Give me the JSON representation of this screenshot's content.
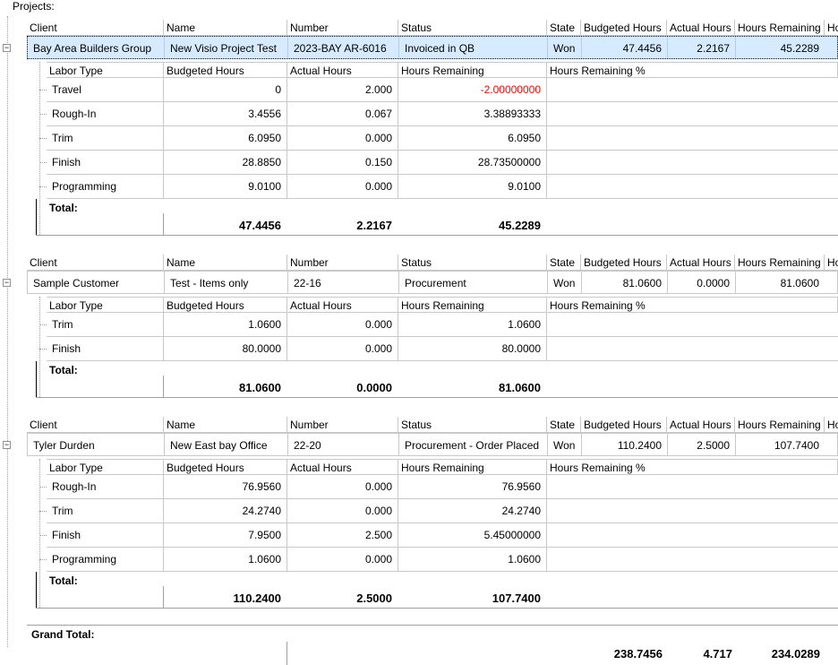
{
  "caption": "Projects:",
  "project_headers": {
    "client": "Client",
    "name": "Name",
    "number": "Number",
    "status": "Status",
    "state": "State",
    "budgeted": "Budgeted Hours",
    "actual": "Actual Hours",
    "remaining": "Hours Remaining",
    "extra": "Ho"
  },
  "labor_headers": {
    "labor_type": "Labor Type",
    "budgeted": "Budgeted Hours",
    "actual": "Actual Hours",
    "remaining": "Hours Remaining",
    "remaining_pct": "Hours Remaining %"
  },
  "total_label": "Total:",
  "grand_total_label": "Grand Total:",
  "expander_glyph": "−",
  "projects": [
    {
      "client": "Bay Area Builders Group",
      "name": "New Visio Project Test",
      "number": "2023-BAY AR-6016",
      "status": "Invoiced in QB",
      "state": "Won",
      "budgeted": "47.4456",
      "actual": "2.2167",
      "remaining": "45.2289",
      "rows": [
        {
          "type": "Travel",
          "budgeted": "0",
          "actual": "2.000",
          "remaining": "-2.00000000"
        },
        {
          "type": "Rough-In",
          "budgeted": "3.4556",
          "actual": "0.067",
          "remaining": "3.38893333"
        },
        {
          "type": "Trim",
          "budgeted": "6.0950",
          "actual": "0.000",
          "remaining": "6.0950"
        },
        {
          "type": "Finish",
          "budgeted": "28.8850",
          "actual": "0.150",
          "remaining": "28.73500000"
        },
        {
          "type": "Programming",
          "budgeted": "9.0100",
          "actual": "0.000",
          "remaining": "9.0100"
        }
      ],
      "total": {
        "budgeted": "47.4456",
        "actual": "2.2167",
        "remaining": "45.2289"
      }
    },
    {
      "client": "Sample Customer",
      "name": "Test - Items only",
      "number": "22-16",
      "status": "Procurement",
      "state": "Won",
      "budgeted": "81.0600",
      "actual": "0.0000",
      "remaining": "81.0600",
      "rows": [
        {
          "type": "Trim",
          "budgeted": "1.0600",
          "actual": "0.000",
          "remaining": "1.0600"
        },
        {
          "type": "Finish",
          "budgeted": "80.0000",
          "actual": "0.000",
          "remaining": "80.0000"
        }
      ],
      "total": {
        "budgeted": "81.0600",
        "actual": "0.0000",
        "remaining": "81.0600"
      }
    },
    {
      "client": "Tyler Durden",
      "name": "New East bay Office",
      "number": "22-20",
      "status": "Procurement - Order Placed",
      "state": "Won",
      "budgeted": "110.2400",
      "actual": "2.5000",
      "remaining": "107.7400",
      "rows": [
        {
          "type": "Rough-In",
          "budgeted": "76.9560",
          "actual": "0.000",
          "remaining": "76.9560"
        },
        {
          "type": "Trim",
          "budgeted": "24.2740",
          "actual": "0.000",
          "remaining": "24.2740"
        },
        {
          "type": "Finish",
          "budgeted": "7.9500",
          "actual": "2.500",
          "remaining": "5.45000000"
        },
        {
          "type": "Programming",
          "budgeted": "1.0600",
          "actual": "0.000",
          "remaining": "1.0600"
        }
      ],
      "total": {
        "budgeted": "110.2400",
        "actual": "2.5000",
        "remaining": "107.7400"
      }
    }
  ],
  "grand_total": {
    "budgeted": "238.7456",
    "actual": "4.717",
    "remaining": "234.0289"
  }
}
